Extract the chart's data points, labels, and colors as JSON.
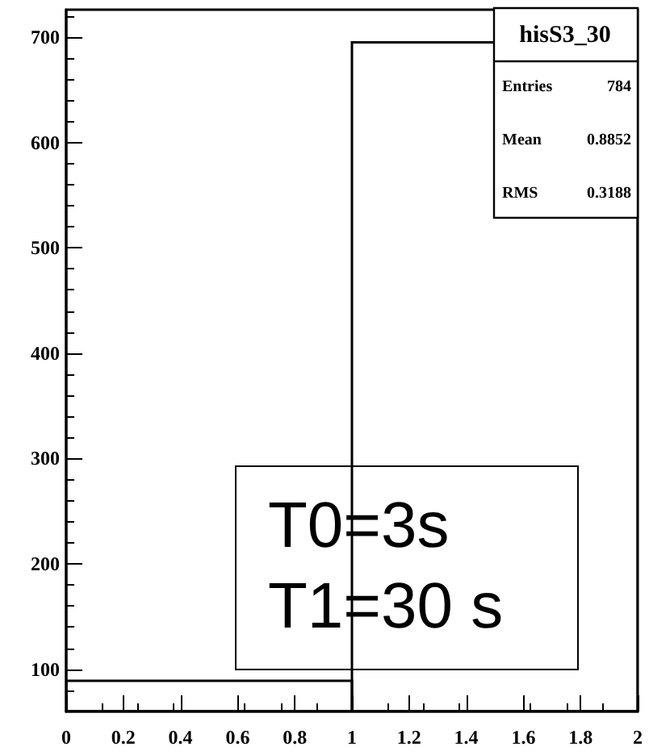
{
  "chart_data": {
    "type": "histogram",
    "title": "hisS3_30",
    "bins": [
      0,
      1,
      2
    ],
    "values": [
      89,
      695
    ],
    "color": "#000000",
    "xlim": [
      0,
      2
    ],
    "xticks": [
      0,
      0.2,
      0.4,
      0.6,
      0.8,
      1,
      1.2,
      1.4,
      1.6,
      1.8,
      2
    ],
    "ylim": [
      60,
      726
    ],
    "yticks": [
      100,
      200,
      300,
      400,
      500,
      600,
      700
    ],
    "grid": false,
    "annotations": [
      "Entries 784",
      "Mean 0.8852",
      "RMS 0.3188",
      "T0=3s",
      "T1=30 s"
    ]
  }
}
